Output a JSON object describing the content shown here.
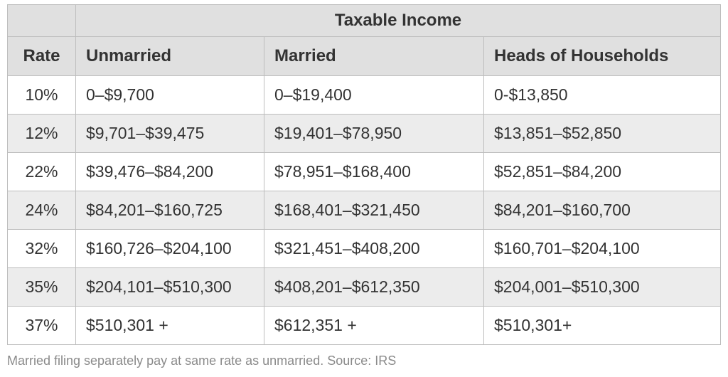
{
  "table": {
    "group_header": "Taxable Income",
    "headers": [
      "Rate",
      "Unmarried",
      "Married",
      "Heads of Households"
    ],
    "rows": [
      {
        "rate": "10%",
        "unmarried": "0–$9,700",
        "married": "0–$19,400",
        "heads": "0-$13,850"
      },
      {
        "rate": "12%",
        "unmarried": "$9,701–$39,475",
        "married": "$19,401–$78,950",
        "heads": "$13,851–$52,850"
      },
      {
        "rate": "22%",
        "unmarried": "$39,476–$84,200",
        "married": "$78,951–$168,400",
        "heads": "$52,851–$84,200"
      },
      {
        "rate": "24%",
        "unmarried": "$84,201–$160,725",
        "married": "$168,401–$321,450",
        "heads": "$84,201–$160,700"
      },
      {
        "rate": "32%",
        "unmarried": "$160,726–$204,100",
        "married": "$321,451–$408,200",
        "heads": "$160,701–$204,100"
      },
      {
        "rate": "35%",
        "unmarried": "$204,101–$510,300",
        "married": "$408,201–$612,350",
        "heads": "$204,001–$510,300"
      },
      {
        "rate": "37%",
        "unmarried": "$510,301 +",
        "married": "$612,351 +",
        "heads": "$510,301+"
      }
    ]
  },
  "footnote": "Married filing separately pay at same rate as unmarried. Source: IRS",
  "colors": {
    "header_bg": "#e0e0e0",
    "alt_row_bg": "#ececec",
    "border": "#bdbdbd",
    "text": "#333333",
    "footnote_text": "#8a8a8a"
  }
}
